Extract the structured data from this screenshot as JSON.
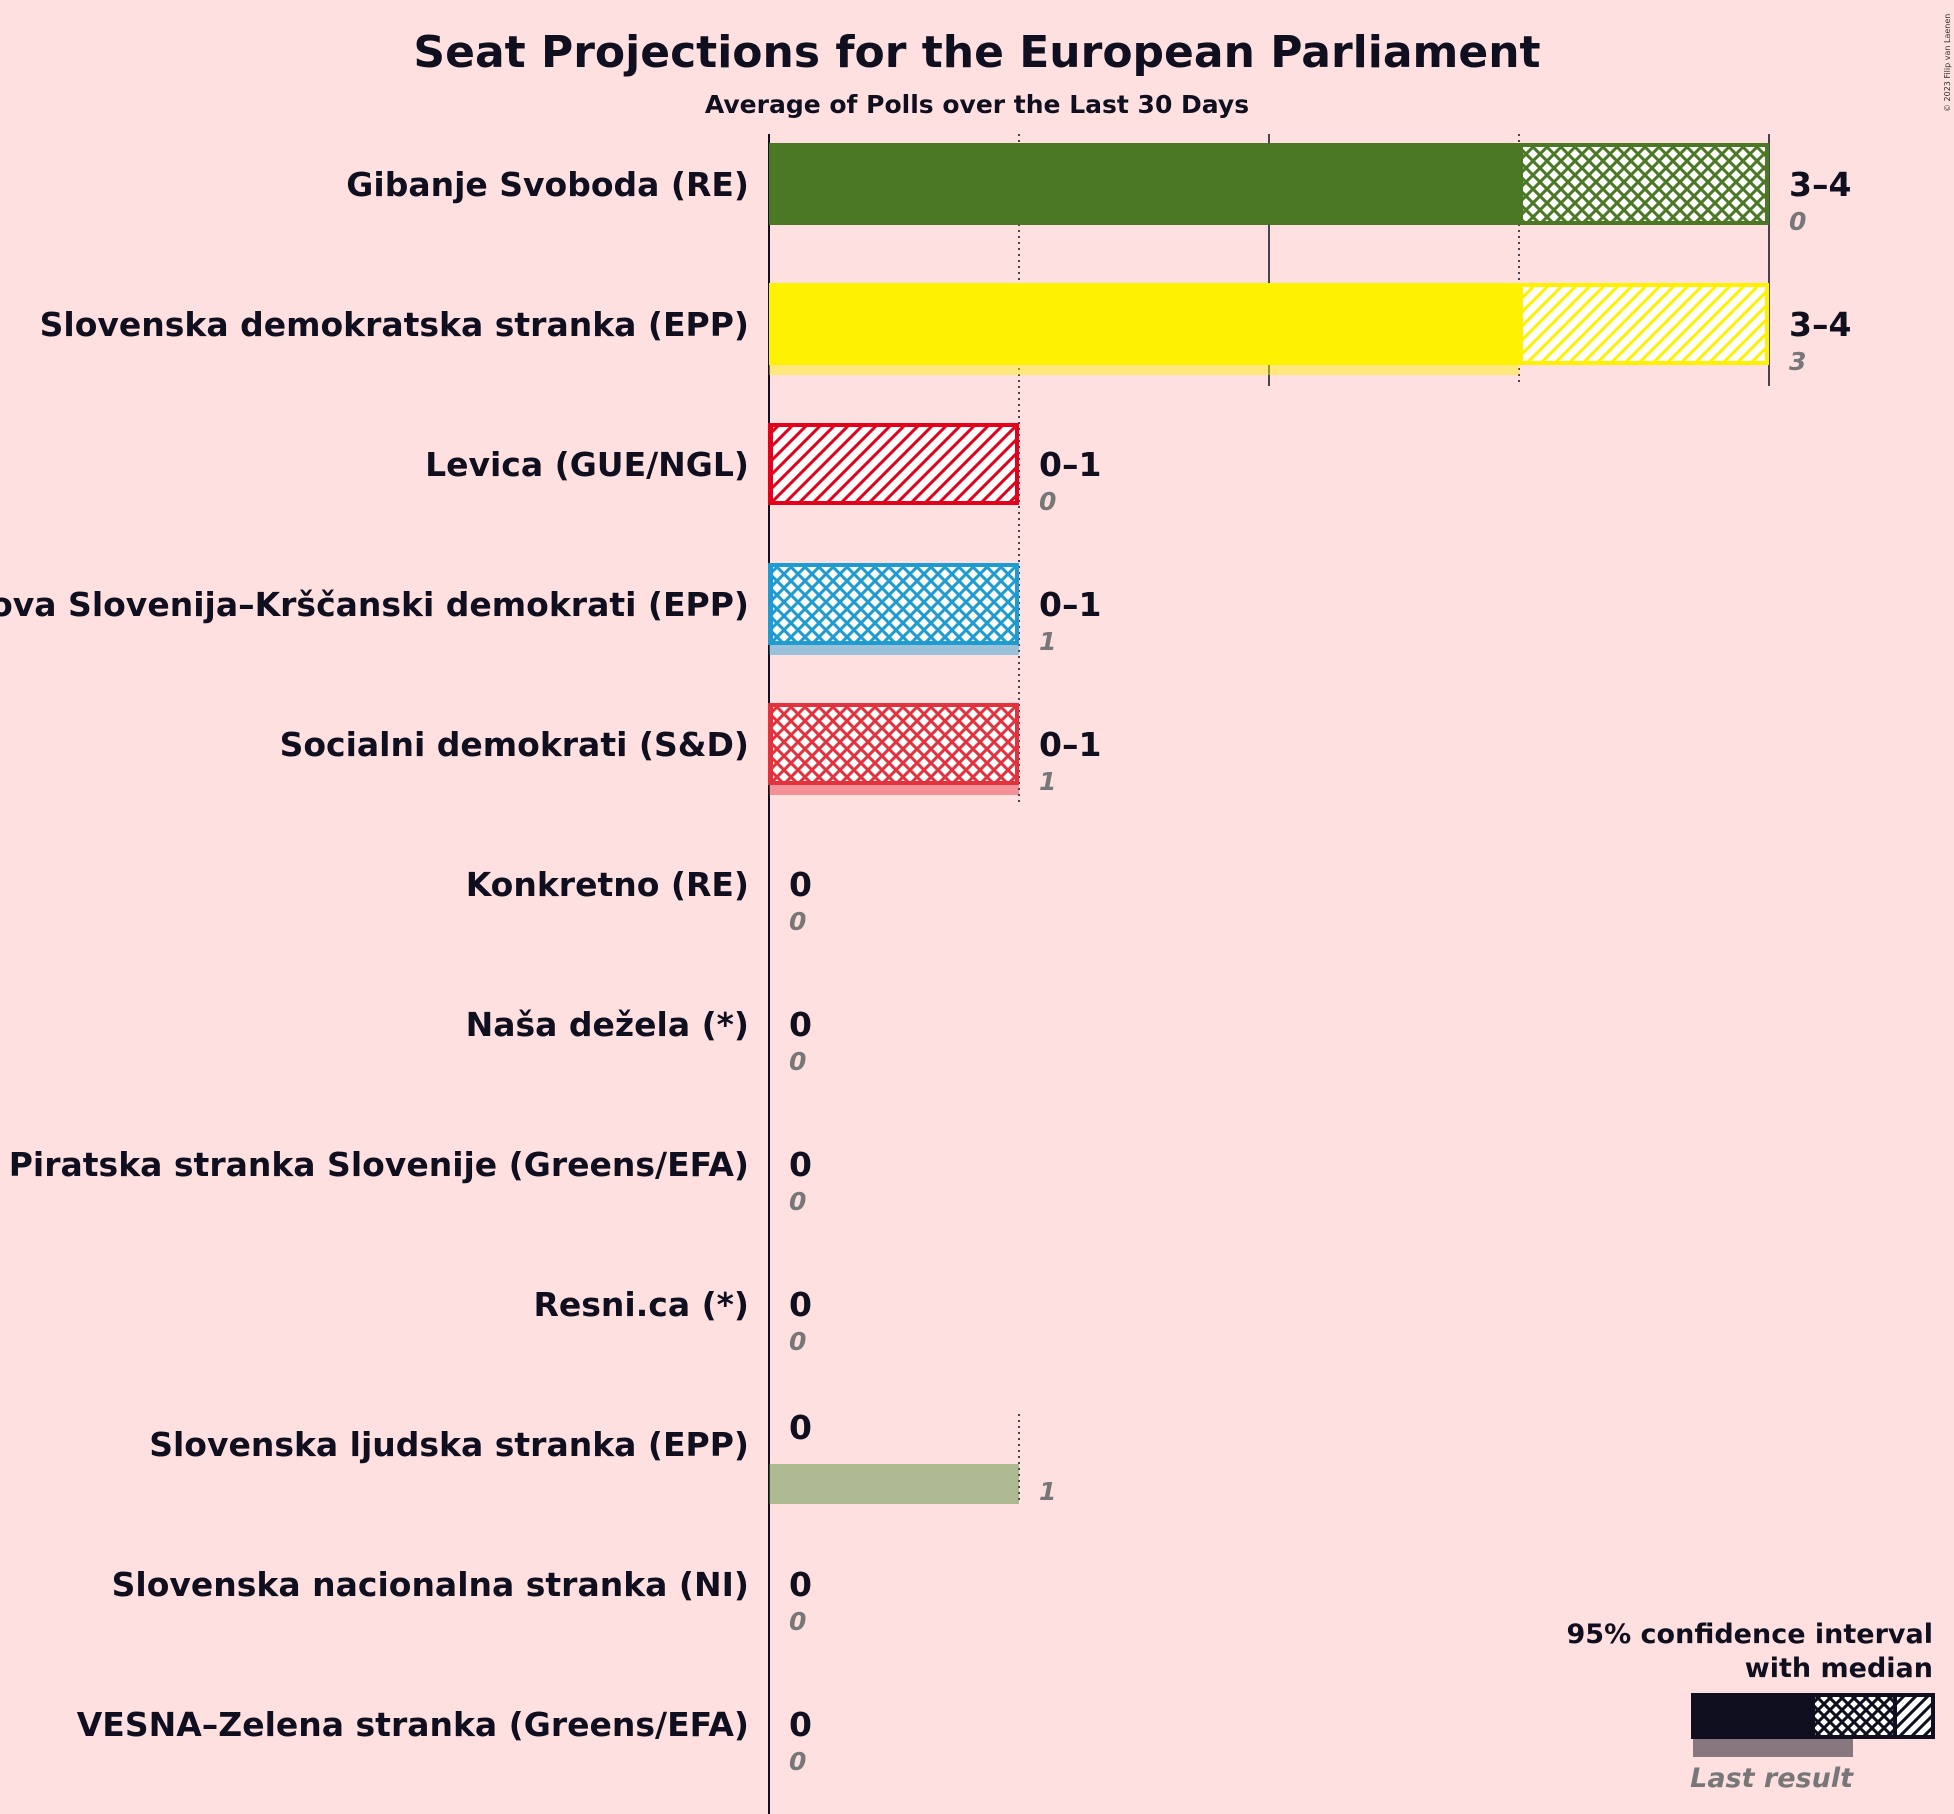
{
  "chart_data": {
    "type": "bar",
    "orientation": "horizontal",
    "title": "Seat Projections for the European Parliament",
    "subtitle": "Average of Polls over the Last 30 Days",
    "copyright": "© 2023 Filip van Laenen",
    "xlim": [
      0,
      4
    ],
    "grid": true,
    "legend_position": "bottom-right",
    "legend": {
      "line1": "95% confidence interval",
      "line2": "with median",
      "last": "Last result"
    },
    "parties": [
      {
        "name": "Gibanje Svoboda (RE)",
        "low": 3,
        "median": 3,
        "high": 4,
        "range": "3–4",
        "last": 0,
        "last_text": "0",
        "color": "#4a7824",
        "hatch": "cross"
      },
      {
        "name": "Slovenska demokratska stranka (EPP)",
        "low": 3,
        "median": 3,
        "high": 4,
        "range": "3–4",
        "last": 3,
        "last_text": "3",
        "color": "#fff200",
        "hatch": "diag"
      },
      {
        "name": "Levica (GUE/NGL)",
        "low": 0,
        "median": 0,
        "high": 1,
        "range": "0–1",
        "last": 0,
        "last_text": "0",
        "color": "#e3001b",
        "hatch": "diag"
      },
      {
        "name": "Nova Slovenija–Krščanski demokrati (EPP)",
        "low": 0,
        "median": 0,
        "high": 1,
        "range": "0–1",
        "last": 1,
        "last_text": "1",
        "color": "#1e9bd0",
        "hatch": "cross"
      },
      {
        "name": "Socialni demokrati (S&D)",
        "low": 0,
        "median": 0,
        "high": 1,
        "range": "0–1",
        "last": 1,
        "last_text": "1",
        "color": "#e2323d",
        "hatch": "cross"
      },
      {
        "name": "Konkretno (RE)",
        "low": 0,
        "median": 0,
        "high": 0,
        "range": "0",
        "last": 0,
        "last_text": "0",
        "color": "#888888",
        "hatch": "none"
      },
      {
        "name": "Naša dežela (*)",
        "low": 0,
        "median": 0,
        "high": 0,
        "range": "0",
        "last": 0,
        "last_text": "0",
        "color": "#888888",
        "hatch": "none"
      },
      {
        "name": "Piratska stranka Slovenije (Greens/EFA)",
        "low": 0,
        "median": 0,
        "high": 0,
        "range": "0",
        "last": 0,
        "last_text": "0",
        "color": "#888888",
        "hatch": "none"
      },
      {
        "name": "Resni.ca (*)",
        "low": 0,
        "median": 0,
        "high": 0,
        "range": "0",
        "last": 0,
        "last_text": "0",
        "color": "#888888",
        "hatch": "none"
      },
      {
        "name": "Slovenska ljudska stranka (EPP)",
        "low": 0,
        "median": 0,
        "high": 0,
        "range": "0",
        "last": 1,
        "last_text": "1",
        "color": "#4a8a30",
        "hatch": "none"
      },
      {
        "name": "Slovenska nacionalna stranka (NI)",
        "low": 0,
        "median": 0,
        "high": 0,
        "range": "0",
        "last": 0,
        "last_text": "0",
        "color": "#888888",
        "hatch": "none"
      },
      {
        "name": "VESNA–Zelena stranka (Greens/EFA)",
        "low": 0,
        "median": 0,
        "high": 0,
        "range": "0",
        "last": 0,
        "last_text": "0",
        "color": "#888888",
        "hatch": "none"
      }
    ]
  }
}
